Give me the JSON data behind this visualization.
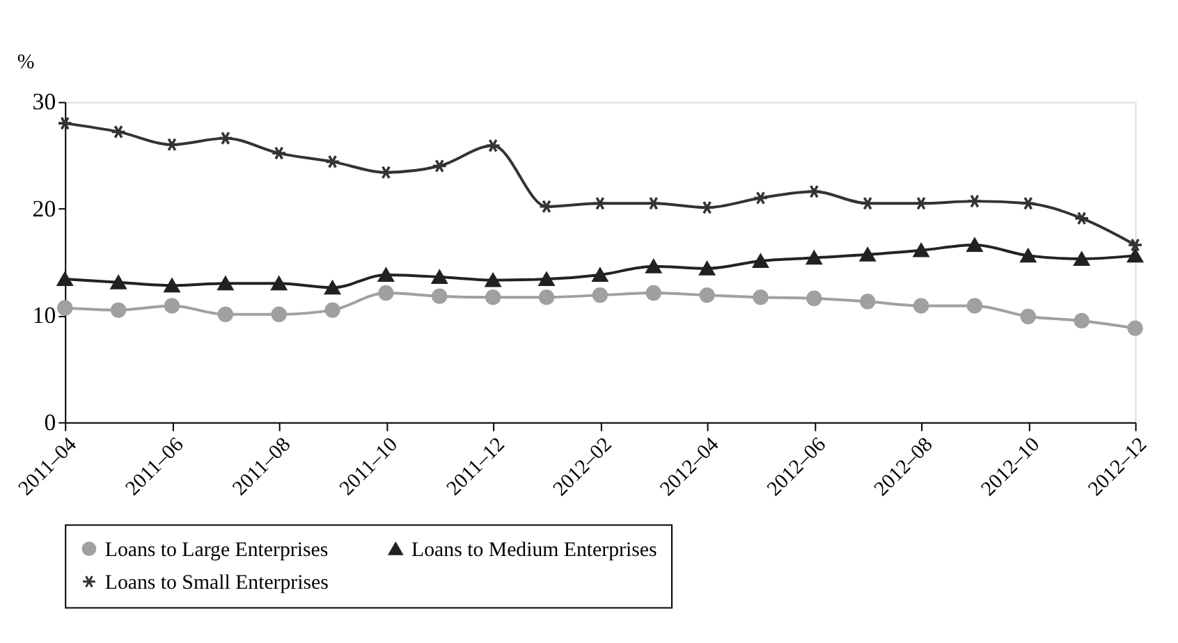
{
  "chart_data": {
    "type": "line",
    "ylabel": "%",
    "categories": [
      "2011–04",
      null,
      "2011–06",
      null,
      "2011–08",
      null,
      "2011–10",
      null,
      "2011–12",
      null,
      "2012–02",
      null,
      "2012–04",
      null,
      "2012–06",
      null,
      "2012–08",
      null,
      "2012–10",
      null,
      "2012–12"
    ],
    "series": [
      {
        "name": "Loans to Large Enterprises",
        "color": "#a0a0a3",
        "marker": "circle",
        "values": [
          10.7,
          10.5,
          10.9,
          10.1,
          10.1,
          10.5,
          12.1,
          11.8,
          11.7,
          11.7,
          11.9,
          12.1,
          11.9,
          11.7,
          11.6,
          11.3,
          10.9,
          10.9,
          9.9,
          9.5,
          8.8
        ]
      },
      {
        "name": "Loans to Medium Enterprises",
        "color": "#222222",
        "marker": "triangle",
        "values": [
          13.4,
          13.1,
          12.8,
          13.0,
          13.0,
          12.6,
          13.8,
          13.6,
          13.3,
          13.4,
          13.8,
          14.6,
          14.4,
          15.1,
          15.4,
          15.7,
          16.1,
          16.6,
          15.6,
          15.3,
          15.6
        ]
      },
      {
        "name": "Loans to Small Enterprises",
        "color": "#333333",
        "marker": "cross",
        "values": [
          28.0,
          27.2,
          26.0,
          26.6,
          25.2,
          24.4,
          23.4,
          24.0,
          25.9,
          20.2,
          20.5,
          20.5,
          20.1,
          21.0,
          21.6,
          20.5,
          20.5,
          20.7,
          20.5,
          19.1,
          16.6
        ]
      }
    ],
    "ylim": [
      0,
      30
    ],
    "yticks": [
      0,
      10,
      20,
      30
    ],
    "grid": false,
    "legend": "bottom",
    "line_style": "solid"
  }
}
